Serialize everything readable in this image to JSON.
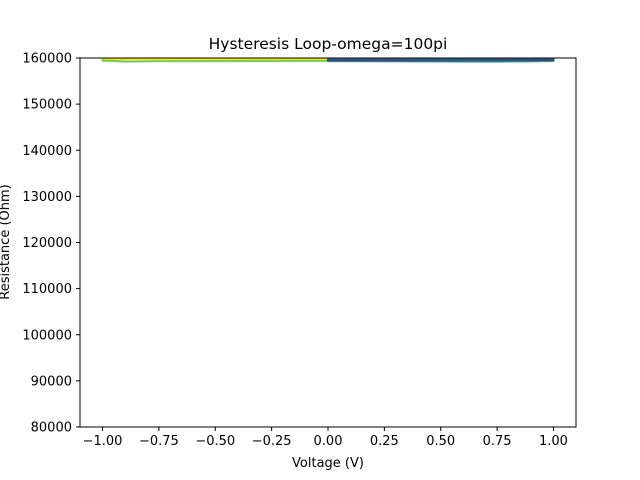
{
  "chart_data": {
    "type": "line",
    "title": "Hysteresis Loop-omega=100pi",
    "xlabel": "Voltage (V)",
    "ylabel": "Resistance (Ohm)",
    "xlim": [
      -1.1,
      1.1
    ],
    "ylim": [
      80000,
      160000
    ],
    "x_ticks": [
      -1.0,
      -0.75,
      -0.5,
      -0.25,
      0.0,
      0.25,
      0.5,
      0.75,
      1.0
    ],
    "x_tick_labels": [
      "−1.00",
      "−0.75",
      "−0.50",
      "−0.25",
      "0.00",
      "0.25",
      "0.50",
      "0.75",
      "1.00"
    ],
    "y_ticks": [
      80000,
      90000,
      100000,
      110000,
      120000,
      130000,
      140000,
      150000,
      160000
    ],
    "y_tick_labels": [
      "80000",
      "90000",
      "100000",
      "110000",
      "120000",
      "130000",
      "140000",
      "150000",
      "160000"
    ],
    "grid": false,
    "colormap": "viridis",
    "series": [
      {
        "color": "#fde725",
        "x": [
          0.0,
          -0.25,
          -0.5,
          -0.75,
          -1.0
        ],
        "y": [
          159700,
          159750,
          159780,
          159780,
          159800
        ]
      },
      {
        "color": "#7ad151",
        "x": [
          -1.0,
          -0.9,
          -0.75,
          -0.5,
          -0.25,
          0.0
        ],
        "y": [
          159450,
          159250,
          159300,
          159320,
          159350,
          159400
        ]
      },
      {
        "color": "#22a884",
        "x": [
          0.0,
          0.25,
          0.5,
          0.75,
          0.9,
          1.0
        ],
        "y": [
          159350,
          159300,
          159260,
          159250,
          159280,
          159400
        ]
      },
      {
        "color": "#2a788e",
        "x": [
          0.0,
          0.25,
          0.5,
          0.75,
          1.0
        ],
        "y": [
          159700,
          159720,
          159740,
          159760,
          159780
        ]
      },
      {
        "color": "#414487",
        "x": [
          1.0,
          0.75,
          0.5,
          0.25,
          0.0
        ],
        "y": [
          159550,
          159520,
          159500,
          159480,
          159480
        ]
      }
    ]
  }
}
